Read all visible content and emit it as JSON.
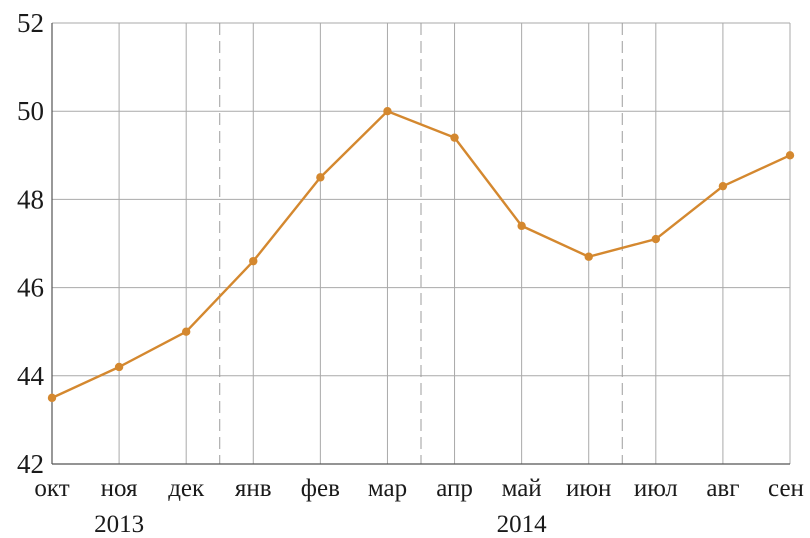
{
  "chart_data": {
    "type": "line",
    "title": "",
    "xlabel": "",
    "ylabel": "",
    "categories": [
      "окт",
      "ноя",
      "дек",
      "янв",
      "фев",
      "мар",
      "апр",
      "май",
      "июн",
      "июл",
      "авг",
      "сен"
    ],
    "series": [
      {
        "values": [
          43.5,
          44.2,
          45.0,
          46.6,
          48.5,
          50.0,
          49.4,
          47.4,
          46.7,
          47.1,
          48.3,
          49.0
        ],
        "color": "#d4882f"
      }
    ],
    "ylim": [
      42,
      52
    ],
    "yticks": [
      "42",
      "44",
      "46",
      "48",
      "50",
      "52"
    ],
    "year_labels": [
      {
        "label": "2013",
        "between": [
          "окт",
          "дек"
        ]
      },
      {
        "label": "2014",
        "between": [
          "янв",
          "сен"
        ]
      }
    ],
    "year_separators_after": [
      "дек",
      "мар",
      "июн"
    ],
    "grid": true,
    "legend": "none"
  }
}
